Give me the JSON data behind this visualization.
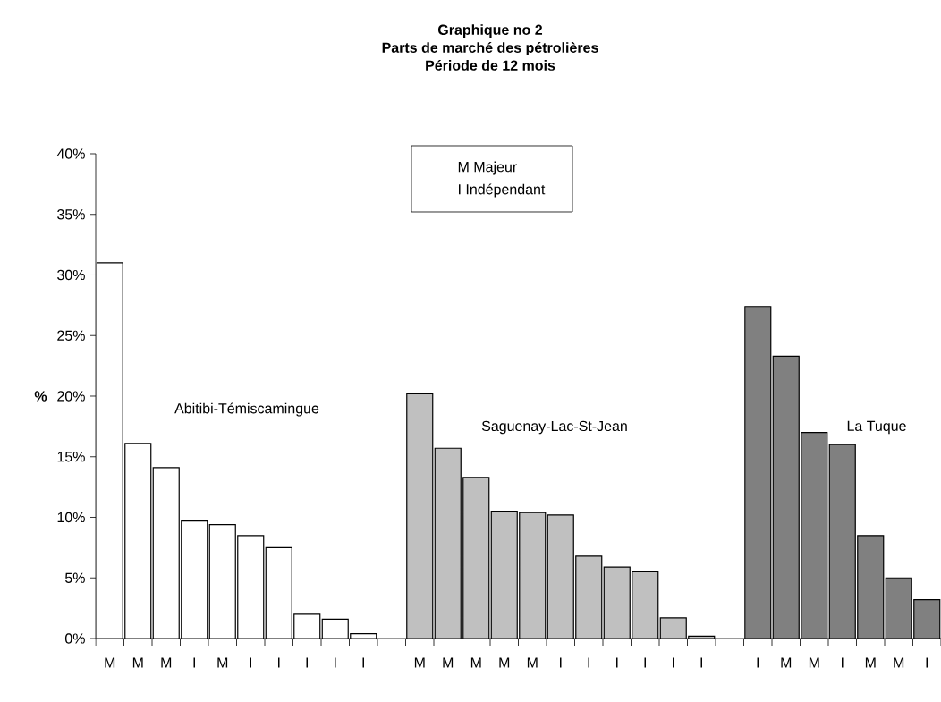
{
  "chart_data": {
    "type": "bar",
    "title": "Graphique no 2\nParts de marché des pétrolières\nPériode de 12 mois",
    "ylabel": "%",
    "categories": [
      "M",
      "M",
      "M",
      "I",
      "M",
      "I",
      "I",
      "I",
      "I",
      "I",
      null,
      "M",
      "M",
      "M",
      "M",
      "M",
      "I",
      "I",
      "I",
      "I",
      "I",
      "I",
      null,
      "I",
      "M",
      "M",
      "I",
      "M",
      "M",
      "I"
    ],
    "series": [
      {
        "color": "#ffffff",
        "values": [
          31.0,
          16.1,
          14.1,
          9.7,
          9.4,
          8.5,
          7.5,
          2.0,
          1.6,
          0.4,
          null,
          null,
          null,
          null,
          null,
          null,
          null,
          null,
          null,
          null,
          null,
          null,
          null,
          null,
          null,
          null,
          null,
          null,
          null,
          null
        ]
      },
      {
        "color": "#c0c0c0",
        "values": [
          null,
          null,
          null,
          null,
          null,
          null,
          null,
          null,
          null,
          null,
          null,
          20.2,
          15.7,
          13.3,
          10.5,
          10.4,
          10.2,
          6.8,
          5.9,
          5.5,
          1.7,
          0.2,
          null,
          null,
          null,
          null,
          null,
          null,
          null,
          null
        ]
      },
      {
        "color": "#808080",
        "values": [
          null,
          null,
          null,
          null,
          null,
          null,
          null,
          null,
          null,
          null,
          null,
          null,
          null,
          null,
          null,
          null,
          null,
          null,
          null,
          null,
          null,
          null,
          null,
          27.4,
          23.3,
          17.0,
          16.0,
          8.5,
          5.0,
          3.2
        ]
      }
    ],
    "ylim": [
      0,
      40
    ],
    "yticks": [
      {
        "value": 0,
        "label": "0%"
      },
      {
        "value": 5,
        "label": "5%"
      },
      {
        "value": 10,
        "label": "10%"
      },
      {
        "value": 15,
        "label": "15%"
      },
      {
        "value": 20,
        "label": "20%"
      },
      {
        "value": 25,
        "label": "25%"
      },
      {
        "value": 30,
        "label": "30%"
      },
      {
        "value": 35,
        "label": "35%"
      },
      {
        "value": 40,
        "label": "40%"
      }
    ],
    "annotations": [
      "M   Majeur",
      "I   Indépendant",
      "Abitibi-Témiscamingue",
      "Saguenay-Lac-St-Jean",
      "La Tuque"
    ]
  }
}
